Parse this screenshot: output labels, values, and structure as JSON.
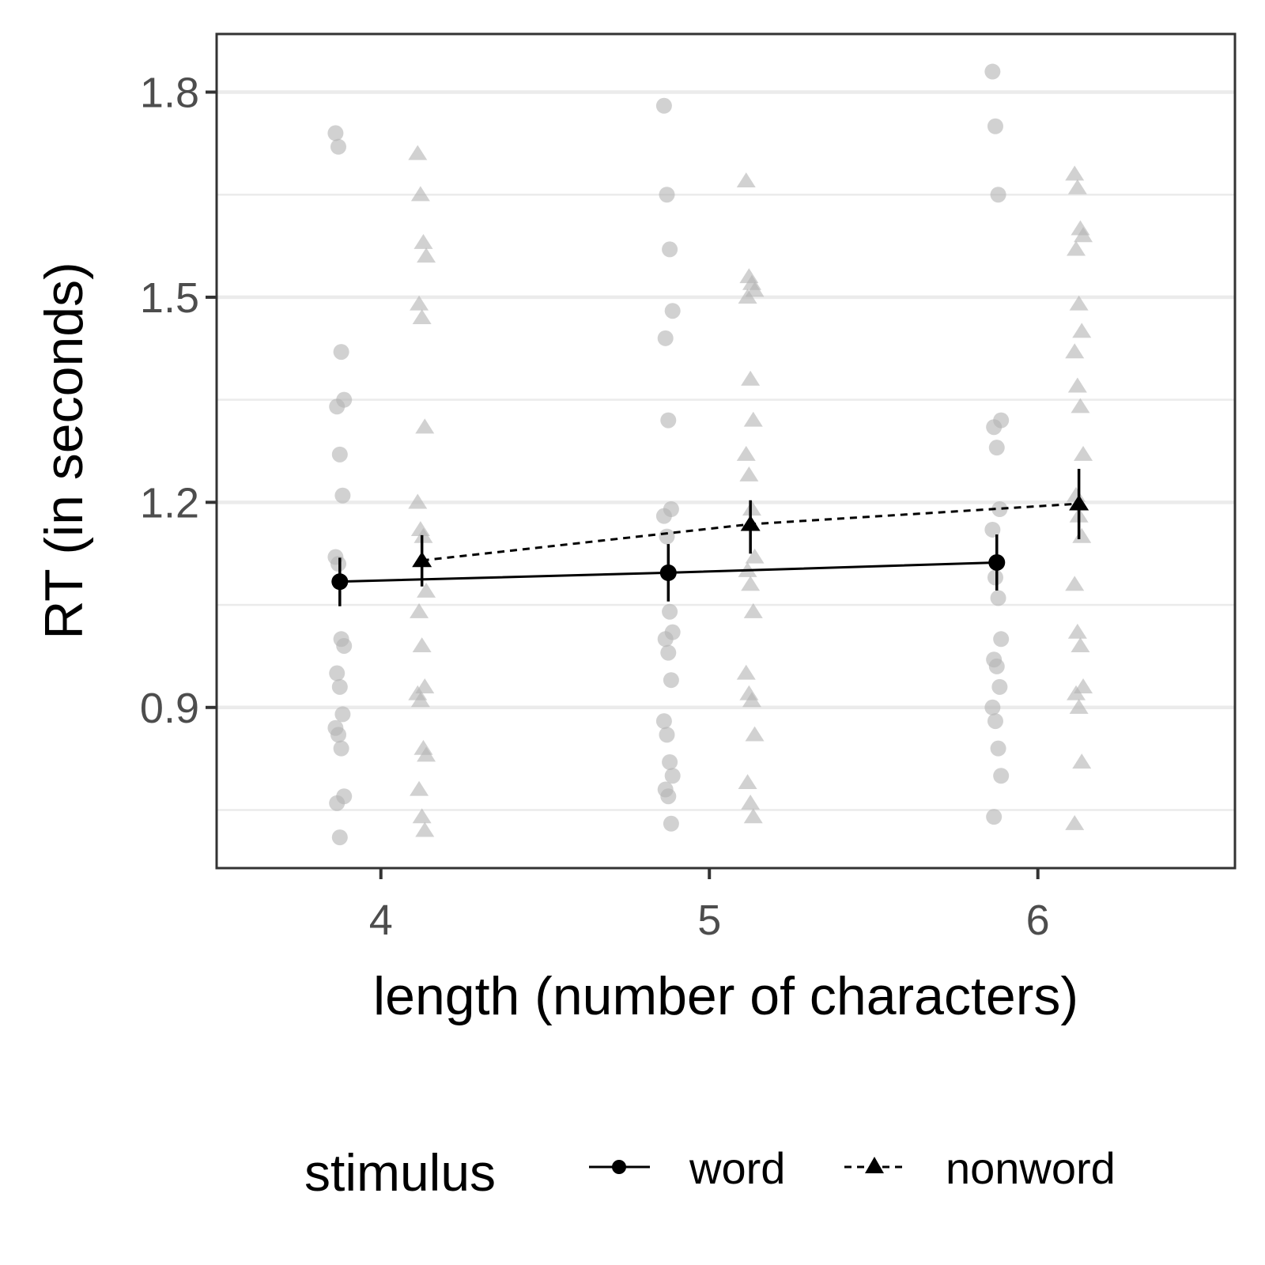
{
  "chart_data": {
    "type": "scatter",
    "xlabel": "length (number of characters)",
    "ylabel": "RT (in seconds)",
    "x_ticks": [
      4,
      5,
      6
    ],
    "y_ticks": [
      0.9,
      1.2,
      1.5,
      1.8
    ],
    "xlim": [
      3.5,
      6.6
    ],
    "ylim": [
      0.665,
      1.885
    ],
    "grid": "horizontal",
    "legend": {
      "title": "stimulus",
      "position": "bottom",
      "entries": [
        "word",
        "nonword"
      ]
    },
    "series": [
      {
        "name": "word",
        "marker": "circle",
        "line": "solid",
        "color": "#000000",
        "means": [
          {
            "x": 4,
            "y": 1.084,
            "ymin": 1.048,
            "ymax": 1.119
          },
          {
            "x": 5,
            "y": 1.097,
            "ymin": 1.055,
            "ymax": 1.139
          },
          {
            "x": 6,
            "y": 1.112,
            "ymin": 1.071,
            "ymax": 1.153
          }
        ],
        "raw": [
          {
            "x": 4,
            "ys": [
              1.74,
              1.72,
              1.42,
              1.35,
              1.34,
              1.27,
              1.21,
              1.12,
              1.11,
              1.0,
              0.99,
              0.95,
              0.93,
              0.89,
              0.87,
              0.86,
              0.84,
              0.77,
              0.76,
              0.71
            ]
          },
          {
            "x": 5,
            "ys": [
              1.78,
              1.65,
              1.57,
              1.48,
              1.44,
              1.32,
              1.19,
              1.18,
              1.15,
              1.04,
              1.01,
              1.0,
              0.98,
              0.94,
              0.88,
              0.86,
              0.82,
              0.8,
              0.78,
              0.77,
              0.73
            ]
          },
          {
            "x": 6,
            "ys": [
              1.83,
              1.75,
              1.65,
              1.32,
              1.31,
              1.28,
              1.19,
              1.16,
              1.09,
              1.06,
              1.0,
              0.97,
              0.96,
              0.93,
              0.9,
              0.88,
              0.84,
              0.8,
              0.74
            ]
          }
        ]
      },
      {
        "name": "nonword",
        "marker": "triangle",
        "line": "dashed",
        "color": "#000000",
        "means": [
          {
            "x": 4,
            "y": 1.115,
            "ymin": 1.077,
            "ymax": 1.152
          },
          {
            "x": 5,
            "y": 1.168,
            "ymin": 1.125,
            "ymax": 1.203
          },
          {
            "x": 6,
            "y": 1.198,
            "ymin": 1.146,
            "ymax": 1.249
          }
        ],
        "raw": [
          {
            "x": 4,
            "ys": [
              1.71,
              1.65,
              1.58,
              1.56,
              1.49,
              1.47,
              1.31,
              1.2,
              1.16,
              1.15,
              1.07,
              1.04,
              0.99,
              0.93,
              0.92,
              0.91,
              0.84,
              0.83,
              0.78,
              0.74,
              0.72
            ]
          },
          {
            "x": 5,
            "ys": [
              1.67,
              1.53,
              1.52,
              1.51,
              1.5,
              1.38,
              1.32,
              1.27,
              1.24,
              1.19,
              1.12,
              1.1,
              1.08,
              1.04,
              0.95,
              0.92,
              0.91,
              0.86,
              0.79,
              0.76,
              0.74
            ]
          },
          {
            "x": 6,
            "ys": [
              1.68,
              1.66,
              1.6,
              1.59,
              1.57,
              1.49,
              1.45,
              1.42,
              1.37,
              1.34,
              1.27,
              1.21,
              1.18,
              1.15,
              1.08,
              1.01,
              0.99,
              0.93,
              0.92,
              0.9,
              0.82,
              0.73
            ]
          }
        ]
      }
    ]
  }
}
